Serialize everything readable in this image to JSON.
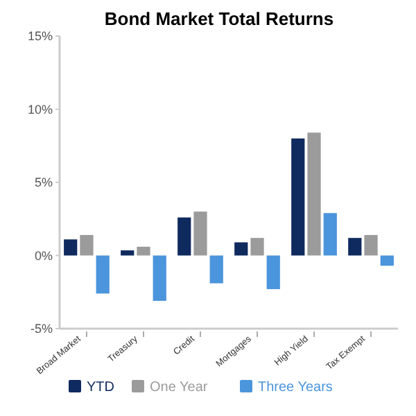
{
  "chart_data": {
    "type": "bar",
    "title": "Bond Market Total Returns",
    "categories": [
      "Broad Market",
      "Treasury",
      "Credit",
      "Mortgages",
      "High Yield",
      "Tax Exempt"
    ],
    "series": [
      {
        "name": "YTD",
        "color": "#0f2a5e",
        "values": [
          1.1,
          0.35,
          2.6,
          0.9,
          8.0,
          1.2
        ]
      },
      {
        "name": "One Year",
        "color": "#9b9b9b",
        "values": [
          1.4,
          0.6,
          3.0,
          1.2,
          8.4,
          1.4
        ]
      },
      {
        "name": "Three Years",
        "color": "#4b95dc",
        "values": [
          -2.6,
          -3.1,
          -1.9,
          -2.3,
          2.9,
          -0.7
        ]
      }
    ],
    "ylim": [
      -5,
      15
    ],
    "yticks": [
      {
        "value": -5,
        "label": "-5%"
      },
      {
        "value": 0,
        "label": "0%"
      },
      {
        "value": 5,
        "label": "5%"
      },
      {
        "value": 10,
        "label": "10%"
      },
      {
        "value": 15,
        "label": "15%"
      }
    ],
    "grid": false,
    "legend": "bottom"
  }
}
